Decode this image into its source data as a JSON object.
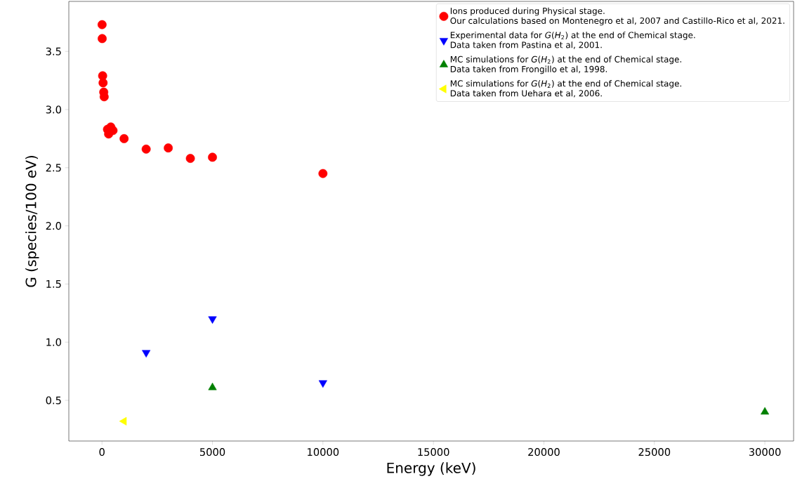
{
  "chart_data": {
    "type": "scatter",
    "xlabel": "Energy (keV)",
    "ylabel": "G (species/100 eV)",
    "xlim": [
      -1500,
      31300
    ],
    "ylim": [
      0.15,
      3.93
    ],
    "xticks": [
      0,
      5000,
      10000,
      15000,
      20000,
      25000,
      30000
    ],
    "yticks": [
      0.5,
      {
        "value": 1,
        "label": "1.0"
      },
      1.5,
      {
        "value": 2,
        "label": "2.0"
      },
      2.5,
      {
        "value": 3,
        "label": "3.0"
      },
      3.5
    ],
    "legend": "top right",
    "grid": false,
    "series": [
      {
        "name": "Ions produced during Physical stage.\nOur calculations based on Montenegro et al, 2007 and Castillo-Rico et al, 2021.",
        "color": "#ff0000",
        "marker": "circle",
        "x": [
          5,
          10,
          30,
          50,
          80,
          100,
          250,
          300,
          400,
          500,
          1000,
          2000,
          3000,
          4000,
          5000,
          10000
        ],
        "values": [
          3.73,
          3.61,
          3.29,
          3.23,
          3.15,
          3.11,
          2.83,
          2.79,
          2.85,
          2.82,
          2.75,
          2.66,
          2.67,
          2.58,
          2.59,
          2.45
        ]
      },
      {
        "name": "Experimental data for *G*(*H*$_{2}$) at the end of Chemical stage.\nData taken from Pastina et al, 2001.",
        "color": "#0000ff",
        "marker": "triangle_down",
        "x": [
          2000,
          5000,
          10000
        ],
        "values": [
          0.91,
          1.2,
          0.65
        ]
      },
      {
        "name": "MC simulations for *G*(*H*$_{2}$) at the end of Chemical stage.\nData taken from Frongillo et al, 1998.",
        "color": "#008000",
        "marker": "triangle",
        "x": [
          5000,
          30000
        ],
        "values": [
          0.61,
          0.4
        ]
      },
      {
        "name": "MC simulations for *G*(*H*$_{2}$) at the end of Chemical stage.\nData taken from Uehara et al, 2006.",
        "color": "#ffff00",
        "marker": "triangle_left",
        "x": [
          1000
        ],
        "values": [
          0.32
        ]
      }
    ]
  }
}
